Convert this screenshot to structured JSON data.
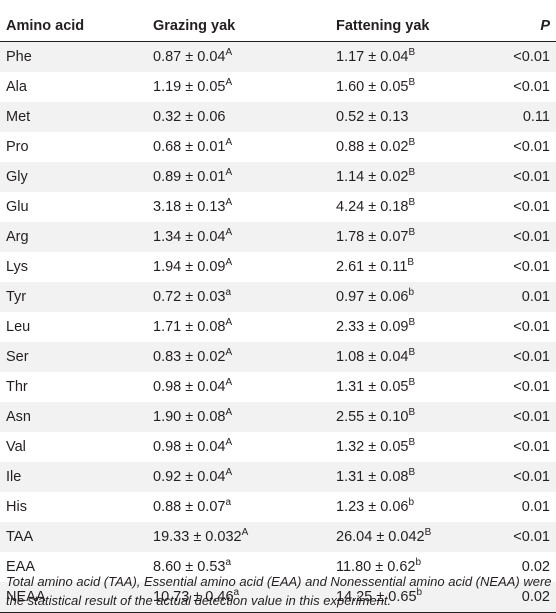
{
  "table": {
    "headers": [
      "Amino acid",
      "Grazing yak",
      "Fattening yak",
      "P"
    ],
    "rows": [
      {
        "name": "Phe",
        "grazing": "0.87 ± 0.04",
        "grazing_sup": "A",
        "fattening": "1.17 ± 0.04",
        "fattening_sup": "B",
        "p": "<0.01"
      },
      {
        "name": "Ala",
        "grazing": "1.19 ± 0.05",
        "grazing_sup": "A",
        "fattening": "1.60 ± 0.05",
        "fattening_sup": "B",
        "p": "<0.01"
      },
      {
        "name": "Met",
        "grazing": "0.32 ± 0.06",
        "grazing_sup": "",
        "fattening": "0.52 ± 0.13",
        "fattening_sup": "",
        "p": "0.11"
      },
      {
        "name": "Pro",
        "grazing": "0.68 ± 0.01",
        "grazing_sup": "A",
        "fattening": "0.88 ± 0.02",
        "fattening_sup": "B",
        "p": "<0.01"
      },
      {
        "name": "Gly",
        "grazing": "0.89 ± 0.01",
        "grazing_sup": "A",
        "fattening": "1.14 ± 0.02",
        "fattening_sup": "B",
        "p": "<0.01"
      },
      {
        "name": "Glu",
        "grazing": "3.18 ± 0.13",
        "grazing_sup": "A",
        "fattening": "4.24 ± 0.18",
        "fattening_sup": "B",
        "p": "<0.01"
      },
      {
        "name": "Arg",
        "grazing": "1.34 ± 0.04",
        "grazing_sup": "A",
        "fattening": "1.78 ± 0.07",
        "fattening_sup": "B",
        "p": "<0.01"
      },
      {
        "name": "Lys",
        "grazing": "1.94 ± 0.09",
        "grazing_sup": "A",
        "fattening": "2.61 ± 0.11",
        "fattening_sup": "B",
        "p": "<0.01"
      },
      {
        "name": "Tyr",
        "grazing": "0.72 ± 0.03",
        "grazing_sup": "a",
        "fattening": "0.97 ± 0.06",
        "fattening_sup": "b",
        "p": "0.01"
      },
      {
        "name": "Leu",
        "grazing": "1.71 ± 0.08",
        "grazing_sup": "A",
        "fattening": "2.33 ± 0.09",
        "fattening_sup": "B",
        "p": "<0.01"
      },
      {
        "name": "Ser",
        "grazing": "0.83 ± 0.02",
        "grazing_sup": "A",
        "fattening": "1.08 ± 0.04",
        "fattening_sup": "B",
        "p": "<0.01"
      },
      {
        "name": "Thr",
        "grazing": "0.98 ± 0.04",
        "grazing_sup": "A",
        "fattening": "1.31 ± 0.05",
        "fattening_sup": "B",
        "p": "<0.01"
      },
      {
        "name": "Asn",
        "grazing": "1.90 ± 0.08",
        "grazing_sup": "A",
        "fattening": "2.55 ± 0.10",
        "fattening_sup": "B",
        "p": "<0.01"
      },
      {
        "name": "Val",
        "grazing": "0.98 ± 0.04",
        "grazing_sup": "A",
        "fattening": "1.32 ± 0.05",
        "fattening_sup": "B",
        "p": "<0.01"
      },
      {
        "name": "Ile",
        "grazing": "0.92 ± 0.04",
        "grazing_sup": "A",
        "fattening": "1.31 ± 0.08",
        "fattening_sup": "B",
        "p": "<0.01"
      },
      {
        "name": "His",
        "grazing": "0.88 ± 0.07",
        "grazing_sup": "a",
        "fattening": "1.23 ± 0.06",
        "fattening_sup": "b",
        "p": "0.01"
      },
      {
        "name": "TAA",
        "grazing": "19.33 ± 0.032",
        "grazing_sup": "A",
        "fattening": "26.04 ± 0.042",
        "fattening_sup": "B",
        "p": "<0.01"
      },
      {
        "name": "EAA",
        "grazing": "8.60 ± 0.53",
        "grazing_sup": "a",
        "fattening": "11.80 ± 0.62",
        "fattening_sup": "b",
        "p": "0.02"
      },
      {
        "name": "NEAA",
        "grazing": "10.73 ± 0.46",
        "grazing_sup": "a",
        "fattening": "14.25 ± 0.65",
        "fattening_sup": "b",
        "p": "0.02"
      }
    ]
  },
  "footnote": "Total amino acid (TAA), Essential amino acid (EAA) and Nonessential amino acid (NEAA) were the statistical result of the actual detection value in this experiment.",
  "colors": {
    "stripe": "#f2f2f2",
    "text": "#231f20"
  }
}
